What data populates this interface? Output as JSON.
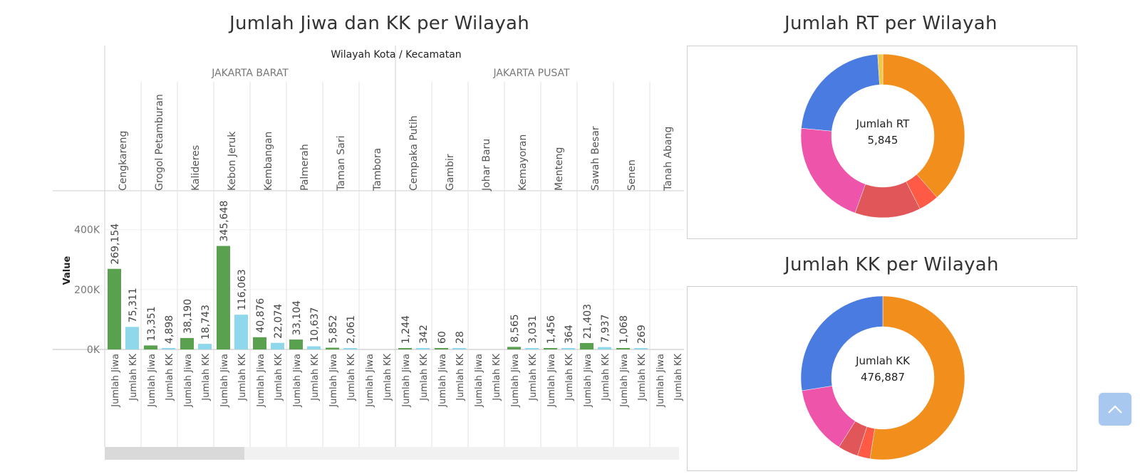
{
  "bar_chart": {
    "title": "Jumlah Jiwa dan KK per Wilayah",
    "column_header": "Wilayah Kota / Kecamatan",
    "regions": [
      "JAKARTA BARAT",
      "JAKARTA PUSAT"
    ],
    "ylabel": "Value",
    "y_ticks": [
      "400K",
      "200K",
      "0K"
    ],
    "colors": {
      "jiwa": "#59a14f",
      "kk": "#8fd8ec"
    }
  },
  "chart_data": [
    {
      "type": "bar",
      "title": "Jumlah Jiwa dan KK per Wilayah",
      "xlabel": "Wilayah Kota / Kecamatan",
      "ylabel": "Value",
      "ylim": [
        0,
        530000
      ],
      "y_tick_values": [
        0,
        200000,
        400000
      ],
      "groups": [
        {
          "region": "JAKARTA BARAT",
          "kecamatan": [
            "Cengkareng",
            "Grogol Petamburan",
            "Kalideres",
            "Kebon Jeruk",
            "Kembangan",
            "Palmerah",
            "Taman Sari",
            "Tambora"
          ]
        },
        {
          "region": "JAKARTA PUSAT",
          "kecamatan": [
            "Cempaka Putih",
            "Gambir",
            "Johar Baru",
            "Kemayoran",
            "Menteng",
            "Sawah Besar",
            "Senen",
            "Tanah Abang"
          ]
        }
      ],
      "categories": [
        "Cengkareng",
        "Grogol Petamburan",
        "Kalideres",
        "Kebon Jeruk",
        "Kembangan",
        "Palmerah",
        "Taman Sari",
        "Tambora",
        "Cempaka Putih",
        "Gambir",
        "Johar Baru",
        "Kemayoran",
        "Menteng",
        "Sawah Besar",
        "Senen",
        "Tanah Abang"
      ],
      "series": [
        {
          "name": "Jumlah Jiwa",
          "values": [
            269154,
            13351,
            38190,
            345648,
            40876,
            33104,
            5852,
            null,
            1244,
            60,
            null,
            8565,
            1456,
            21403,
            1068,
            null
          ],
          "labels": [
            "269,154",
            "13,351",
            "38,190",
            "345,648",
            "40,876",
            "33,104",
            "5,852",
            "",
            "1,244",
            "60",
            "",
            "8,565",
            "1,456",
            "21,403",
            "1,068",
            ""
          ]
        },
        {
          "name": "Jumlah KK",
          "values": [
            75311,
            4898,
            18743,
            116063,
            22074,
            10637,
            2061,
            null,
            342,
            28,
            null,
            3031,
            364,
            7937,
            269,
            null
          ],
          "labels": [
            "75,311",
            "4,898",
            "18,743",
            "116,063",
            "22,074",
            "10,637",
            "2,061",
            "",
            "342",
            "28",
            "",
            "3,031",
            "364",
            "7,937",
            "269",
            ""
          ]
        }
      ],
      "grid": true
    },
    {
      "type": "pie",
      "title": "Jumlah RT per Wilayah",
      "center_label": "Jumlah RT",
      "center_value": "5,845",
      "slices": [
        {
          "value": 0.385,
          "color": "#f28e1c"
        },
        {
          "value": 0.04,
          "color": "#ff5a45"
        },
        {
          "value": 0.13,
          "color": "#e15759"
        },
        {
          "value": 0.21,
          "color": "#ee55aa"
        },
        {
          "value": 0.225,
          "color": "#4a7be0"
        },
        {
          "value": 0.01,
          "color": "#edc948"
        }
      ]
    },
    {
      "type": "pie",
      "title": "Jumlah KK per Wilayah",
      "center_label": "Jumlah KK",
      "center_value": "476,887",
      "slices": [
        {
          "value": 0.525,
          "color": "#f28e1c"
        },
        {
          "value": 0.025,
          "color": "#ff5a45"
        },
        {
          "value": 0.04,
          "color": "#e15759"
        },
        {
          "value": 0.135,
          "color": "#ee55aa"
        },
        {
          "value": 0.275,
          "color": "#4a7be0"
        }
      ]
    }
  ],
  "rt_chart": {
    "title": "Jumlah RT per Wilayah",
    "center_label": "Jumlah RT",
    "center_value": "5,845"
  },
  "kk_chart": {
    "title": "Jumlah KK per Wilayah",
    "center_label": "Jumlah KK",
    "center_value": "476,887"
  },
  "scroll_to_top_icon": "chevron-up-icon"
}
